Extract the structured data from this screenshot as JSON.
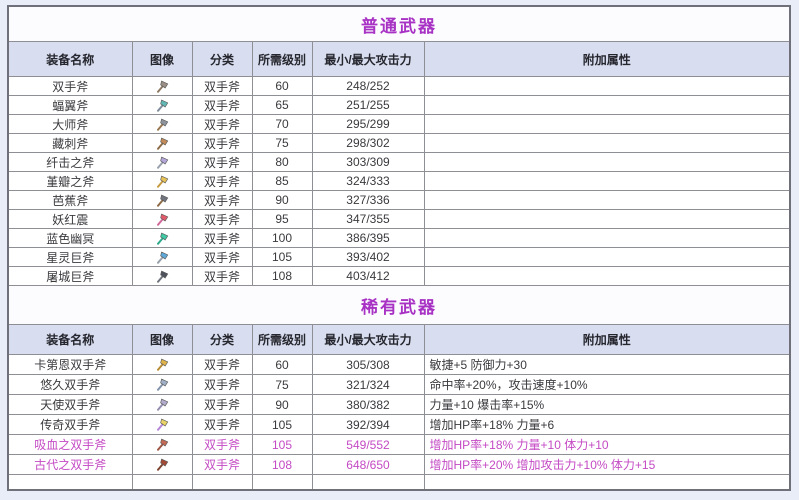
{
  "columns": [
    "装备名称",
    "图像",
    "分类",
    "所需级别",
    "最小/最大攻击力",
    "附加属性"
  ],
  "colors": {
    "title_text": "#a832c4",
    "highlight_text": "#c44ac4",
    "header_bg": "#d8def0"
  },
  "sections": [
    {
      "title": "普通武器",
      "rows": [
        {
          "name": "双手斧",
          "category": "双手斧",
          "level": "60",
          "attack": "248/252",
          "attrs": "",
          "hl": false,
          "icon": {
            "head": "#9b8f85",
            "handle": "#8d7a64"
          }
        },
        {
          "name": "蝠翼斧",
          "category": "双手斧",
          "level": "65",
          "attack": "251/255",
          "attrs": "",
          "hl": false,
          "icon": {
            "head": "#62b8b4",
            "handle": "#7e8b9b"
          }
        },
        {
          "name": "大师斧",
          "category": "双手斧",
          "level": "70",
          "attack": "295/299",
          "attrs": "",
          "hl": false,
          "icon": {
            "head": "#8f949c",
            "handle": "#97774f"
          }
        },
        {
          "name": "藏刺斧",
          "category": "双手斧",
          "level": "75",
          "attack": "298/302",
          "attrs": "",
          "hl": false,
          "icon": {
            "head": "#c18a56",
            "handle": "#8d6b46"
          }
        },
        {
          "name": "纤击之斧",
          "category": "双手斧",
          "level": "80",
          "attack": "303/309",
          "attrs": "",
          "hl": false,
          "icon": {
            "head": "#b4a6d8",
            "handle": "#9aa0ad"
          }
        },
        {
          "name": "堇瓣之斧",
          "category": "双手斧",
          "level": "85",
          "attack": "324/333",
          "attrs": "",
          "hl": false,
          "icon": {
            "head": "#e7c258",
            "handle": "#c79a3e"
          }
        },
        {
          "name": "芭蕉斧",
          "category": "双手斧",
          "level": "90",
          "attack": "327/336",
          "attrs": "",
          "hl": false,
          "icon": {
            "head": "#6f747d",
            "handle": "#8d6b46"
          }
        },
        {
          "name": "妖红震",
          "category": "双手斧",
          "level": "95",
          "attack": "347/355",
          "attrs": "",
          "hl": false,
          "icon": {
            "head": "#e35a6a",
            "handle": "#d06a9a"
          }
        },
        {
          "name": "蓝色幽冥",
          "category": "双手斧",
          "level": "100",
          "attack": "386/395",
          "attrs": "",
          "hl": false,
          "icon": {
            "head": "#3fc9a4",
            "handle": "#2fa98c"
          }
        },
        {
          "name": "星灵巨斧",
          "category": "双手斧",
          "level": "105",
          "attack": "393/402",
          "attrs": "",
          "hl": false,
          "icon": {
            "head": "#5fa9d9",
            "handle": "#98a0ab"
          }
        },
        {
          "name": "屠城巨斧",
          "category": "双手斧",
          "level": "108",
          "attack": "403/412",
          "attrs": "",
          "hl": false,
          "icon": {
            "head": "#4d525c",
            "handle": "#6f747d"
          }
        }
      ]
    },
    {
      "title": "稀有武器",
      "rows": [
        {
          "name": "卡第恩双手斧",
          "category": "双手斧",
          "level": "60",
          "attack": "305/308",
          "attrs": "敏捷+5 防御力+30",
          "hl": false,
          "icon": {
            "head": "#dfb34a",
            "handle": "#b78b33"
          }
        },
        {
          "name": "悠久双手斧",
          "category": "双手斧",
          "level": "75",
          "attack": "321/324",
          "attrs": "命中率+20%，攻击速度+10%",
          "hl": false,
          "icon": {
            "head": "#9fb0c6",
            "handle": "#8292aa"
          }
        },
        {
          "name": "天使双手斧",
          "category": "双手斧",
          "level": "90",
          "attack": "380/382",
          "attrs": "力量+10 爆击率+15%",
          "hl": false,
          "icon": {
            "head": "#b3abcb",
            "handle": "#958daf"
          }
        },
        {
          "name": "传奇双手斧",
          "category": "双手斧",
          "level": "105",
          "attack": "392/394",
          "attrs": "增加HP率+18% 力量+6",
          "hl": false,
          "icon": {
            "head": "#e9d366",
            "handle": "#b585d6"
          }
        },
        {
          "name": "吸血之双手斧",
          "category": "双手斧",
          "level": "105",
          "attack": "549/552",
          "attrs": "增加HP率+18% 力量+10 体力+10",
          "hl": true,
          "icon": {
            "head": "#c26a56",
            "handle": "#9e5544"
          }
        },
        {
          "name": "古代之双手斧",
          "category": "双手斧",
          "level": "108",
          "attack": "648/650",
          "attrs": "增加HP率+20% 增加攻击力+10% 体力+15",
          "hl": true,
          "icon": {
            "head": "#a34a36",
            "handle": "#7e4330"
          }
        }
      ]
    }
  ]
}
